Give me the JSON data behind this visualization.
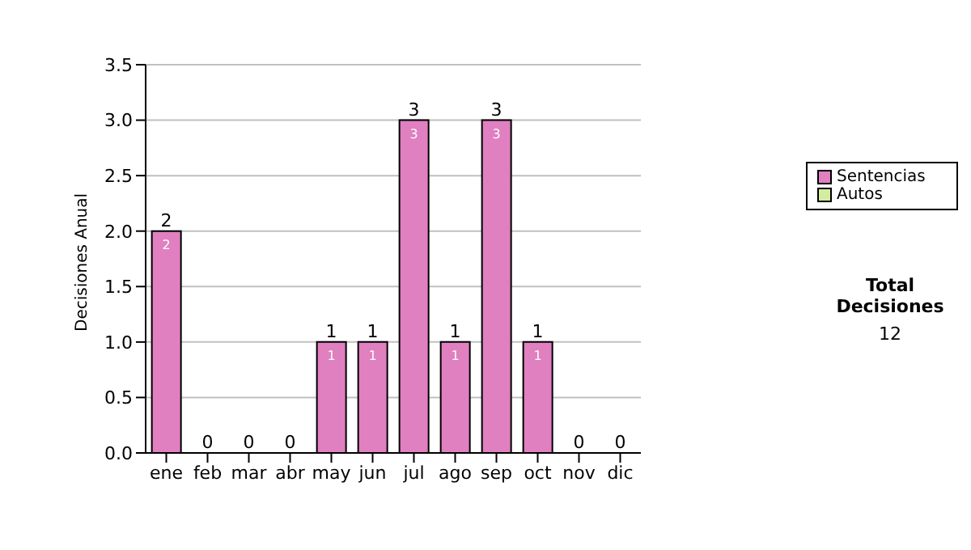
{
  "chart_data": {
    "type": "bar",
    "ylabel": "Decisiones Anual",
    "categories": [
      "ene",
      "feb",
      "mar",
      "abr",
      "may",
      "jun",
      "jul",
      "ago",
      "sep",
      "oct",
      "nov",
      "dic"
    ],
    "series": [
      {
        "name": "Sentencias",
        "color": "#e080c0",
        "values": [
          2,
          0,
          0,
          0,
          1,
          1,
          3,
          1,
          3,
          1,
          0,
          0
        ],
        "value_labels": [
          "2",
          null,
          null,
          null,
          "1",
          "1",
          "3",
          "1",
          "3",
          "1",
          null,
          null
        ]
      },
      {
        "name": "Autos",
        "color": "#d4eca0",
        "values": [
          0,
          0,
          0,
          0,
          0,
          0,
          0,
          0,
          0,
          0,
          0,
          0
        ]
      }
    ],
    "stacked": true,
    "totals": [
      "2",
      "0",
      "0",
      "0",
      "1",
      "1",
      "3",
      "1",
      "3",
      "1",
      "0",
      "0"
    ],
    "ylim": [
      0,
      3.5
    ],
    "yticks": [
      {
        "value": 0,
        "label": "0.0"
      },
      {
        "value": 0.5,
        "label": "0.5"
      },
      {
        "value": 1,
        "label": "1.0"
      },
      {
        "value": 1.5,
        "label": "1.5"
      },
      {
        "value": 2,
        "label": "2.0"
      },
      {
        "value": 2.5,
        "label": "2.5"
      },
      {
        "value": 3,
        "label": "3.0"
      },
      {
        "value": 3.5,
        "label": "3.5"
      }
    ],
    "grid": "y",
    "legend": "right",
    "annotations": [
      "Total Decisiones",
      "12"
    ]
  }
}
